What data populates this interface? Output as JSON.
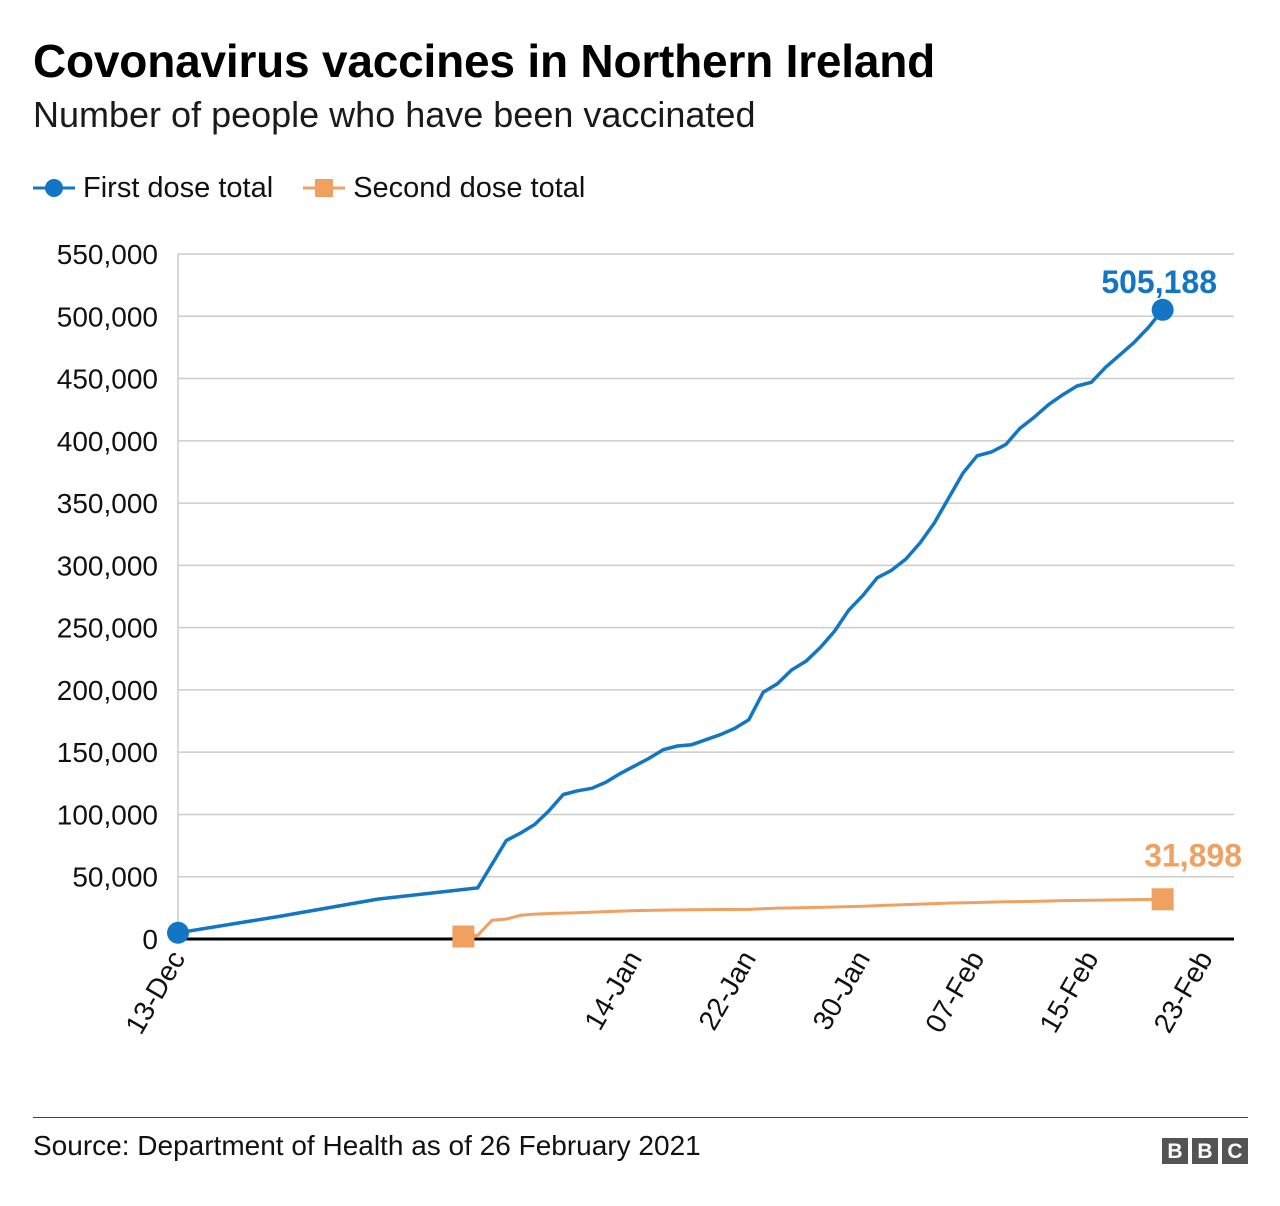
{
  "title": "Covonavirus vaccines in Northern Ireland",
  "subtitle": "Number of people who have been vaccinated",
  "source": "Source: Department of Health as of 26 February 2021",
  "logo": [
    "B",
    "B",
    "C"
  ],
  "colors": {
    "first_dose": "#1276c4",
    "second_dose": "#f0a060",
    "grid": "#cccccc",
    "axis": "#000000"
  },
  "chart_data": {
    "type": "line",
    "title": "",
    "xlabel": "",
    "ylabel": "",
    "legend": "top-left",
    "grid": true,
    "ylim": [
      0,
      550000
    ],
    "yticks": [
      0,
      50000,
      100000,
      150000,
      200000,
      250000,
      300000,
      350000,
      400000,
      450000,
      500000,
      550000
    ],
    "ytick_labels": [
      "0",
      "50,000",
      "100,000",
      "150,000",
      "200,000",
      "250,000",
      "300,000",
      "350,000",
      "400,000",
      "450,000",
      "500,000",
      "550,000"
    ],
    "xlim": [
      "2020-12-13",
      "2021-02-25"
    ],
    "xticks": [
      "2020-12-13",
      "2021-01-14",
      "2021-01-22",
      "2021-01-30",
      "2021-02-07",
      "2021-02-15",
      "2021-02-23"
    ],
    "xtick_labels": [
      "13-Dec",
      "14-Jan",
      "22-Jan",
      "30-Jan",
      "07-Feb",
      "15-Feb",
      "23-Feb"
    ],
    "series": [
      {
        "name": "First dose total",
        "color": "#1276c4",
        "end_label": "505,188",
        "points": [
          [
            "2020-12-13",
            5000
          ],
          [
            "2020-12-20",
            18000
          ],
          [
            "2020-12-27",
            32000
          ],
          [
            "2021-01-03",
            41000
          ],
          [
            "2021-01-05",
            79000
          ],
          [
            "2021-01-06",
            85000
          ],
          [
            "2021-01-07",
            92000
          ],
          [
            "2021-01-08",
            103000
          ],
          [
            "2021-01-09",
            116000
          ],
          [
            "2021-01-10",
            119000
          ],
          [
            "2021-01-11",
            121000
          ],
          [
            "2021-01-12",
            126000
          ],
          [
            "2021-01-13",
            133000
          ],
          [
            "2021-01-14",
            139000
          ],
          [
            "2021-01-15",
            145000
          ],
          [
            "2021-01-16",
            152000
          ],
          [
            "2021-01-17",
            155000
          ],
          [
            "2021-01-18",
            156000
          ],
          [
            "2021-01-19",
            160000
          ],
          [
            "2021-01-20",
            164000
          ],
          [
            "2021-01-21",
            169000
          ],
          [
            "2021-01-22",
            176000
          ],
          [
            "2021-01-23",
            198000
          ],
          [
            "2021-01-24",
            205000
          ],
          [
            "2021-01-25",
            216000
          ],
          [
            "2021-01-26",
            223000
          ],
          [
            "2021-01-27",
            234000
          ],
          [
            "2021-01-28",
            247000
          ],
          [
            "2021-01-29",
            264000
          ],
          [
            "2021-01-30",
            276000
          ],
          [
            "2021-01-31",
            290000
          ],
          [
            "2021-02-01",
            296000
          ],
          [
            "2021-02-02",
            305000
          ],
          [
            "2021-02-03",
            318000
          ],
          [
            "2021-02-04",
            334000
          ],
          [
            "2021-02-05",
            354000
          ],
          [
            "2021-02-06",
            374000
          ],
          [
            "2021-02-07",
            388000
          ],
          [
            "2021-02-08",
            391000
          ],
          [
            "2021-02-09",
            397000
          ],
          [
            "2021-02-10",
            410000
          ],
          [
            "2021-02-11",
            419000
          ],
          [
            "2021-02-12",
            429000
          ],
          [
            "2021-02-13",
            437000
          ],
          [
            "2021-02-14",
            444000
          ],
          [
            "2021-02-15",
            447000
          ],
          [
            "2021-02-16",
            459000
          ],
          [
            "2021-02-17",
            469000
          ],
          [
            "2021-02-18",
            479000
          ],
          [
            "2021-02-19",
            491000
          ],
          [
            "2021-02-20",
            505188
          ]
        ]
      },
      {
        "name": "Second dose total",
        "color": "#f0a060",
        "end_label": "31,898",
        "points": [
          [
            "2021-01-02",
            2000
          ],
          [
            "2021-01-03",
            3000
          ],
          [
            "2021-01-04",
            15000
          ],
          [
            "2021-01-05",
            16000
          ],
          [
            "2021-01-06",
            19000
          ],
          [
            "2021-01-07",
            20000
          ],
          [
            "2021-01-08",
            20500
          ],
          [
            "2021-01-10",
            21000
          ],
          [
            "2021-01-12",
            22000
          ],
          [
            "2021-01-14",
            22800
          ],
          [
            "2021-01-16",
            23200
          ],
          [
            "2021-01-18",
            23500
          ],
          [
            "2021-01-20",
            23700
          ],
          [
            "2021-01-22",
            23800
          ],
          [
            "2021-01-24",
            24800
          ],
          [
            "2021-01-26",
            25200
          ],
          [
            "2021-01-28",
            25700
          ],
          [
            "2021-01-30",
            26300
          ],
          [
            "2021-02-01",
            27200
          ],
          [
            "2021-02-03",
            28000
          ],
          [
            "2021-02-05",
            28800
          ],
          [
            "2021-02-07",
            29300
          ],
          [
            "2021-02-09",
            29900
          ],
          [
            "2021-02-11",
            30200
          ],
          [
            "2021-02-13",
            30800
          ],
          [
            "2021-02-15",
            31100
          ],
          [
            "2021-02-17",
            31400
          ],
          [
            "2021-02-20",
            31898
          ]
        ]
      }
    ]
  }
}
